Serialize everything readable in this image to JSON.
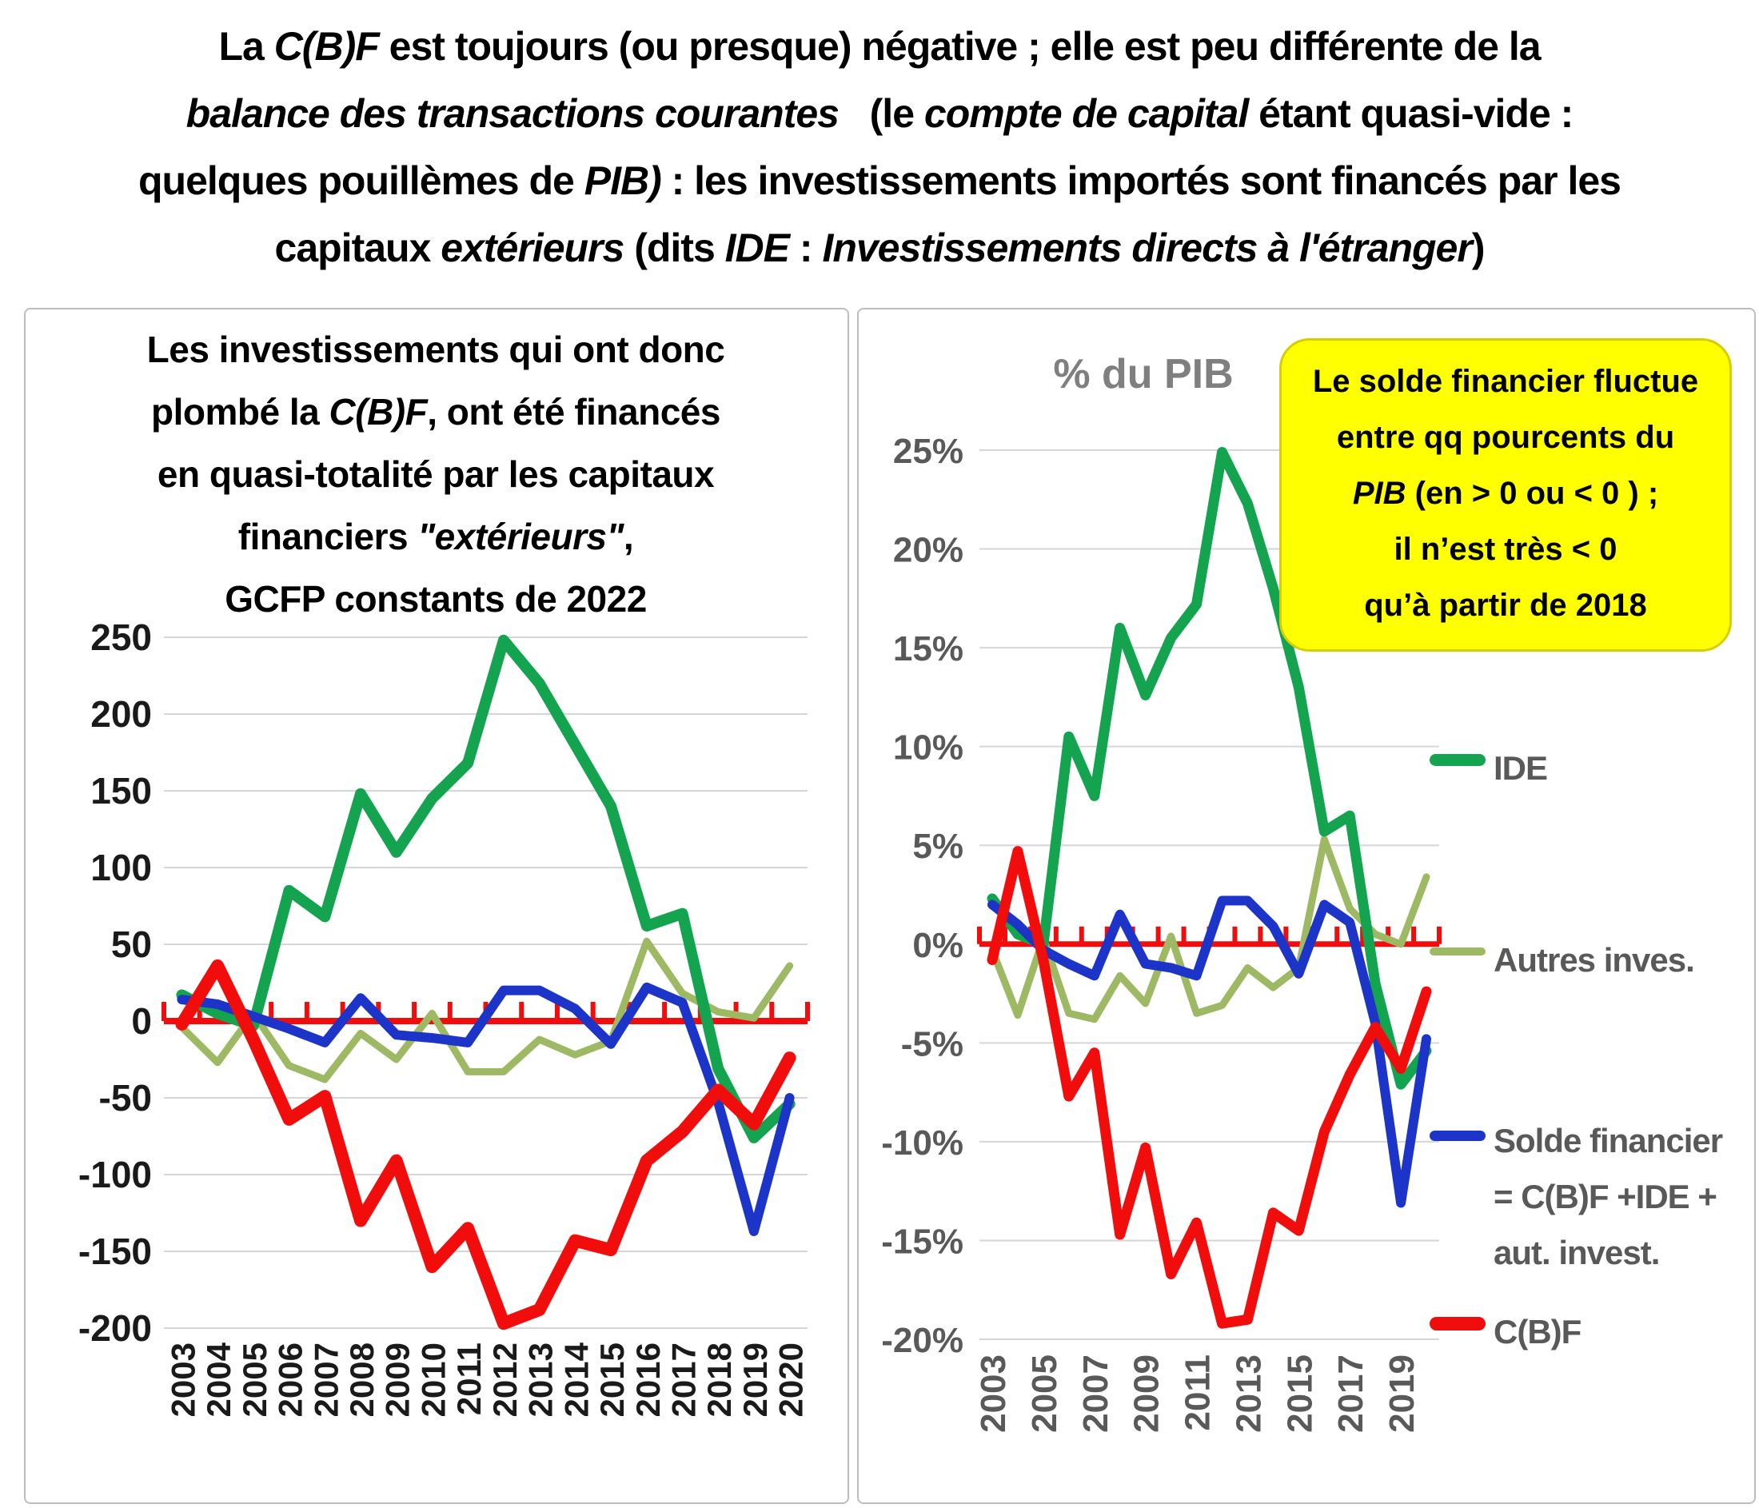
{
  "title": {
    "lines": [
      [
        {
          "t": "La ",
          "i": false
        },
        {
          "t": "C(B)F",
          "i": true
        },
        {
          "t": " est toujours (ou presque) négative ; elle est peu différente de la",
          "i": false
        }
      ],
      [
        {
          "t": "balance des transactions courantes",
          "i": true
        },
        {
          "t": "   (le ",
          "i": false
        },
        {
          "t": "compte de capital",
          "i": true
        },
        {
          "t": " étant quasi-vide :",
          "i": false
        }
      ],
      [
        {
          "t": "quelques pouillèmes de ",
          "i": false
        },
        {
          "t": "PIB)",
          "i": true
        },
        {
          "t": " : les investissements importés sont financés par les",
          "i": false
        }
      ],
      [
        {
          "t": "capitaux ",
          "i": false
        },
        {
          "t": "extérieurs",
          "i": true
        },
        {
          "t": " (dits ",
          "i": false
        },
        {
          "t": "IDE",
          "i": true
        },
        {
          "t": " : ",
          "i": false
        },
        {
          "t": "Investissements directs à l'étranger",
          "i": true
        },
        {
          "t": ")",
          "i": false
        }
      ]
    ]
  },
  "left_panel": {
    "title_lines": [
      [
        {
          "t": "Les investissements qui ont donc",
          "i": false
        }
      ],
      [
        {
          "t": "plombé la ",
          "i": false
        },
        {
          "t": "C(B)F",
          "i": true
        },
        {
          "t": ", ont été financés",
          "i": false
        }
      ],
      [
        {
          "t": "en quasi-totalité par les capitaux",
          "i": false
        }
      ],
      [
        {
          "t": "financiers ",
          "i": false
        },
        {
          "t": "\"extérieurs\"",
          "i": true
        },
        {
          "t": ",",
          "i": false
        }
      ],
      [
        {
          "t": "GCFP constants de 2022",
          "i": false
        }
      ]
    ]
  },
  "right_panel": {
    "plot_title": "% du PIB",
    "callout": {
      "bg": "#FFFF00",
      "border": "#D9CC00",
      "lines": [
        [
          {
            "t": "Le solde financier fluctue",
            "i": false
          }
        ],
        [
          {
            "t": "entre qq pourcents du",
            "i": false
          }
        ],
        [
          {
            "t": "PIB",
            "i": true
          },
          {
            "t": " (en > 0 ou < 0 ) ;",
            "i": false
          }
        ],
        [
          {
            "t": "il n’est très < 0",
            "i": false
          }
        ],
        [
          {
            "t": "qu’à partir de 2018",
            "i": false
          }
        ]
      ]
    },
    "legend": [
      {
        "name": "IDE",
        "color": "#14A44F",
        "lines": [
          "IDE"
        ]
      },
      {
        "name": "Autres inves.",
        "color": "#9DB963",
        "lines": [
          "Autres inves."
        ]
      },
      {
        "name": "Solde financier",
        "color": "#1C35C8",
        "lines": [
          "Solde financier",
          "= C(B)F +IDE +",
          "aut. invest."
        ]
      },
      {
        "name": "C(B)F",
        "color": "#F20D0D",
        "lines": [
          "C(B)F"
        ]
      }
    ]
  },
  "chart_data": [
    {
      "type": "line",
      "title": "Les investissements qui ont donc plombé la C(B)F, ont été financés en quasi-totalité par les capitaux financiers \"extérieurs\", GCFP constants de 2022",
      "categories": [
        "2003",
        "2004",
        "2005",
        "2006",
        "2007",
        "2008",
        "2009",
        "2010",
        "2011",
        "2012",
        "2013",
        "2014",
        "2015",
        "2016",
        "2017",
        "2018",
        "2019",
        "2020"
      ],
      "xtick_indices": [
        0,
        1,
        2,
        3,
        4,
        5,
        6,
        7,
        8,
        9,
        10,
        11,
        12,
        13,
        14,
        15,
        16,
        17
      ],
      "ylim": [
        -200,
        250
      ],
      "ytick_step": 50,
      "ytick_labels": [
        "250",
        "200",
        "150",
        "100",
        "50",
        "0",
        "-50",
        "-100",
        "-150",
        "-200"
      ],
      "grid": true,
      "legend_position": "none",
      "zero_axis_color": "#F20D0D",
      "series": [
        {
          "name": "Autres inves.",
          "color": "#9DB963",
          "width": 9,
          "values": [
            -4,
            -27,
            5,
            -29,
            -38,
            -8,
            -25,
            5,
            -33,
            -33,
            -12,
            -22,
            -13,
            52,
            18,
            6,
            2,
            36
          ]
        },
        {
          "name": "IDE",
          "color": "#14A44F",
          "width": 14,
          "values": [
            17,
            5,
            -3,
            85,
            68,
            148,
            110,
            145,
            168,
            248,
            220,
            180,
            140,
            62,
            70,
            -31,
            -76,
            -54
          ]
        },
        {
          "name": "Solde financier = C(B)F +IDE + aut. invest.",
          "color": "#1C35C8",
          "width": 12,
          "values": [
            14,
            11,
            3,
            -5,
            -14,
            15,
            -9,
            -11,
            -14,
            20,
            20,
            8,
            -15,
            22,
            12,
            -53,
            -137,
            -50
          ]
        },
        {
          "name": "C(B)F",
          "color": "#F20D0D",
          "width": 16,
          "values": [
            -2,
            36,
            -12,
            -64,
            -49,
            -130,
            -91,
            -160,
            -135,
            -197,
            -188,
            -143,
            -149,
            -91,
            -72,
            -45,
            -67,
            -24
          ]
        }
      ]
    },
    {
      "type": "line",
      "title": "% du PIB",
      "categories": [
        "2003",
        "2004",
        "2005",
        "2006",
        "2007",
        "2008",
        "2009",
        "2010",
        "2011",
        "2012",
        "2013",
        "2014",
        "2015",
        "2016",
        "2017",
        "2018",
        "2019",
        "2020"
      ],
      "xtick_indices": [
        0,
        2,
        4,
        6,
        8,
        10,
        12,
        14,
        16
      ],
      "ylim": [
        -20,
        25
      ],
      "ytick_step": 5,
      "ytick_labels": [
        "25%",
        "20%",
        "15%",
        "10%",
        "5%",
        "0%",
        "-5%",
        "-10%",
        "-15%",
        "-20%"
      ],
      "grid": true,
      "legend_position": "right",
      "zero_axis_color": "#F20D0D",
      "series": [
        {
          "name": "Autres inves.",
          "color": "#9DB963",
          "width": 9,
          "values": [
            -0.3,
            -3.6,
            0.3,
            -3.5,
            -3.8,
            -1.6,
            -3.0,
            0.4,
            -3.5,
            -3.1,
            -1.2,
            -2.2,
            -1.2,
            5.3,
            1.8,
            0.5,
            0.0,
            3.4
          ]
        },
        {
          "name": "IDE",
          "color": "#14A44F",
          "width": 13,
          "values": [
            2.3,
            0.5,
            0.0,
            10.5,
            7.5,
            16.0,
            12.6,
            15.5,
            17.2,
            24.9,
            22.3,
            18.0,
            13.0,
            5.7,
            6.5,
            -2.0,
            -7.1,
            -5.4
          ]
        },
        {
          "name": "Solde financier = C(B)F +IDE + aut. invest.",
          "color": "#1C35C8",
          "width": 12,
          "values": [
            2.0,
            1.0,
            -0.3,
            -1.0,
            -1.6,
            1.5,
            -1.0,
            -1.2,
            -1.6,
            2.2,
            2.2,
            0.9,
            -1.5,
            2.0,
            1.1,
            -4.0,
            -13.1,
            -4.8
          ]
        },
        {
          "name": "C(B)F",
          "color": "#F20D0D",
          "width": 13,
          "values": [
            -0.8,
            4.7,
            -0.8,
            -7.7,
            -5.5,
            -14.7,
            -10.3,
            -16.7,
            -14.1,
            -19.2,
            -19.0,
            -13.6,
            -14.5,
            -9.5,
            -6.6,
            -4.2,
            -6.3,
            -2.4
          ]
        }
      ]
    }
  ]
}
